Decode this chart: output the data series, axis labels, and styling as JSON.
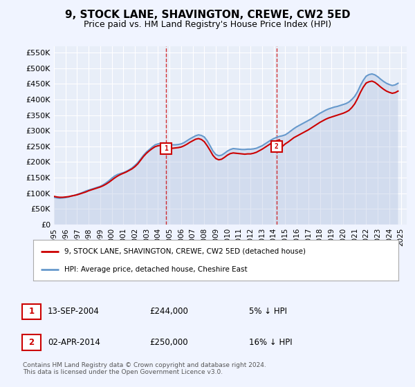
{
  "title": "9, STOCK LANE, SHAVINGTON, CREWE, CW2 5ED",
  "subtitle": "Price paid vs. HM Land Registry's House Price Index (HPI)",
  "ylabel_ticks": [
    "£0",
    "£50K",
    "£100K",
    "£150K",
    "£200K",
    "£250K",
    "£300K",
    "£350K",
    "£400K",
    "£450K",
    "£500K",
    "£550K"
  ],
  "ytick_vals": [
    0,
    50000,
    100000,
    150000,
    200000,
    250000,
    300000,
    350000,
    400000,
    450000,
    500000,
    550000
  ],
  "ylim": [
    0,
    570000
  ],
  "xlim_start": 1995.0,
  "xlim_end": 2025.5,
  "bg_color": "#f0f4ff",
  "plot_bg": "#e8eef8",
  "line1_color": "#cc0000",
  "line2_color": "#6699cc",
  "line2_fill": "#aabbdd",
  "sale1_x": 2004.71,
  "sale1_y": 244000,
  "sale2_x": 2014.25,
  "sale2_y": 250000,
  "legend_label1": "9, STOCK LANE, SHAVINGTON, CREWE, CW2 5ED (detached house)",
  "legend_label2": "HPI: Average price, detached house, Cheshire East",
  "note1_num": "1",
  "note1_date": "13-SEP-2004",
  "note1_price": "£244,000",
  "note1_hpi": "5% ↓ HPI",
  "note2_num": "2",
  "note2_date": "02-APR-2014",
  "note2_price": "£250,000",
  "note2_hpi": "16% ↓ HPI",
  "footer": "Contains HM Land Registry data © Crown copyright and database right 2024.\nThis data is licensed under the Open Government Licence v3.0.",
  "hpi_data_x": [
    1995.0,
    1995.25,
    1995.5,
    1995.75,
    1996.0,
    1996.25,
    1996.5,
    1996.75,
    1997.0,
    1997.25,
    1997.5,
    1997.75,
    1998.0,
    1998.25,
    1998.5,
    1998.75,
    1999.0,
    1999.25,
    1999.5,
    1999.75,
    2000.0,
    2000.25,
    2000.5,
    2000.75,
    2001.0,
    2001.25,
    2001.5,
    2001.75,
    2002.0,
    2002.25,
    2002.5,
    2002.75,
    2003.0,
    2003.25,
    2003.5,
    2003.75,
    2004.0,
    2004.25,
    2004.5,
    2004.75,
    2005.0,
    2005.25,
    2005.5,
    2005.75,
    2006.0,
    2006.25,
    2006.5,
    2006.75,
    2007.0,
    2007.25,
    2007.5,
    2007.75,
    2008.0,
    2008.25,
    2008.5,
    2008.75,
    2009.0,
    2009.25,
    2009.5,
    2009.75,
    2010.0,
    2010.25,
    2010.5,
    2010.75,
    2011.0,
    2011.25,
    2011.5,
    2011.75,
    2012.0,
    2012.25,
    2012.5,
    2012.75,
    2013.0,
    2013.25,
    2013.5,
    2013.75,
    2014.0,
    2014.25,
    2014.5,
    2014.75,
    2015.0,
    2015.25,
    2015.5,
    2015.75,
    2016.0,
    2016.25,
    2016.5,
    2016.75,
    2017.0,
    2017.25,
    2017.5,
    2017.75,
    2018.0,
    2018.25,
    2018.5,
    2018.75,
    2019.0,
    2019.25,
    2019.5,
    2019.75,
    2020.0,
    2020.25,
    2020.5,
    2020.75,
    2021.0,
    2021.25,
    2021.5,
    2021.75,
    2022.0,
    2022.25,
    2022.5,
    2022.75,
    2023.0,
    2023.25,
    2023.5,
    2023.75,
    2024.0,
    2024.25,
    2024.5,
    2024.75
  ],
  "hpi_data_y": [
    87000,
    85000,
    84000,
    85000,
    86000,
    88000,
    91000,
    93000,
    96000,
    99000,
    103000,
    107000,
    110000,
    113000,
    116000,
    119000,
    122000,
    127000,
    133000,
    140000,
    148000,
    155000,
    160000,
    163000,
    166000,
    170000,
    175000,
    181000,
    189000,
    198000,
    210000,
    222000,
    232000,
    240000,
    248000,
    255000,
    258000,
    260000,
    261000,
    257000,
    256000,
    255000,
    255000,
    256000,
    258000,
    262000,
    268000,
    274000,
    279000,
    284000,
    287000,
    285000,
    280000,
    268000,
    252000,
    235000,
    224000,
    220000,
    222000,
    228000,
    235000,
    240000,
    243000,
    242000,
    241000,
    240000,
    240000,
    241000,
    241000,
    242000,
    244000,
    248000,
    252000,
    258000,
    264000,
    270000,
    275000,
    279000,
    282000,
    284000,
    287000,
    293000,
    300000,
    307000,
    313000,
    318000,
    323000,
    328000,
    333000,
    338000,
    344000,
    350000,
    356000,
    361000,
    366000,
    370000,
    373000,
    376000,
    378000,
    381000,
    384000,
    387000,
    392000,
    400000,
    410000,
    425000,
    445000,
    462000,
    475000,
    480000,
    482000,
    479000,
    473000,
    465000,
    458000,
    452000,
    448000,
    445000,
    447000,
    452000
  ],
  "price_data_x": [
    1995.0,
    1995.25,
    1995.5,
    1995.75,
    1996.0,
    1996.25,
    1996.5,
    1996.75,
    1997.0,
    1997.25,
    1997.5,
    1997.75,
    1998.0,
    1998.25,
    1998.5,
    1998.75,
    1999.0,
    1999.25,
    1999.5,
    1999.75,
    2000.0,
    2000.25,
    2000.5,
    2000.75,
    2001.0,
    2001.25,
    2001.5,
    2001.75,
    2002.0,
    2002.25,
    2002.5,
    2002.75,
    2003.0,
    2003.25,
    2003.5,
    2003.75,
    2004.0,
    2004.25,
    2004.5,
    2004.75,
    2005.0,
    2005.25,
    2005.5,
    2005.75,
    2006.0,
    2006.25,
    2006.5,
    2006.75,
    2007.0,
    2007.25,
    2007.5,
    2007.75,
    2008.0,
    2008.25,
    2008.5,
    2008.75,
    2009.0,
    2009.25,
    2009.5,
    2009.75,
    2010.0,
    2010.25,
    2010.5,
    2010.75,
    2011.0,
    2011.25,
    2011.5,
    2011.75,
    2012.0,
    2012.25,
    2012.5,
    2012.75,
    2013.0,
    2013.25,
    2013.5,
    2013.75,
    2014.0,
    2014.25,
    2014.5,
    2014.75,
    2015.0,
    2015.25,
    2015.5,
    2015.75,
    2016.0,
    2016.25,
    2016.5,
    2016.75,
    2017.0,
    2017.25,
    2017.5,
    2017.75,
    2018.0,
    2018.25,
    2018.5,
    2018.75,
    2019.0,
    2019.25,
    2019.5,
    2019.75,
    2020.0,
    2020.25,
    2020.5,
    2020.75,
    2021.0,
    2021.25,
    2021.5,
    2021.75,
    2022.0,
    2022.25,
    2022.5,
    2022.75,
    2023.0,
    2023.25,
    2023.5,
    2023.75,
    2024.0,
    2024.25,
    2024.5,
    2024.75
  ],
  "price_data_y": [
    90000,
    88000,
    87000,
    87000,
    88000,
    89000,
    91000,
    93000,
    95000,
    98000,
    101000,
    104000,
    108000,
    111000,
    114000,
    117000,
    120000,
    124000,
    129000,
    135000,
    142000,
    149000,
    155000,
    160000,
    164000,
    168000,
    173000,
    178000,
    185000,
    194000,
    206000,
    218000,
    228000,
    236000,
    243000,
    249000,
    252000,
    253000,
    254000,
    244000,
    244000,
    244000,
    245000,
    246000,
    248000,
    252000,
    257000,
    263000,
    268000,
    273000,
    275000,
    272000,
    265000,
    252000,
    237000,
    221000,
    211000,
    207000,
    209000,
    215000,
    222000,
    227000,
    229000,
    228000,
    227000,
    226000,
    225000,
    226000,
    226000,
    228000,
    231000,
    236000,
    241000,
    247000,
    253000,
    259000,
    264000,
    268000,
    271000,
    250000,
    258000,
    264000,
    271000,
    278000,
    283000,
    288000,
    293000,
    298000,
    303000,
    309000,
    315000,
    321000,
    327000,
    332000,
    337000,
    341000,
    344000,
    347000,
    350000,
    353000,
    356000,
    360000,
    365000,
    374000,
    386000,
    403000,
    423000,
    440000,
    453000,
    457000,
    459000,
    455000,
    448000,
    440000,
    433000,
    427000,
    423000,
    420000,
    422000,
    427000
  ]
}
